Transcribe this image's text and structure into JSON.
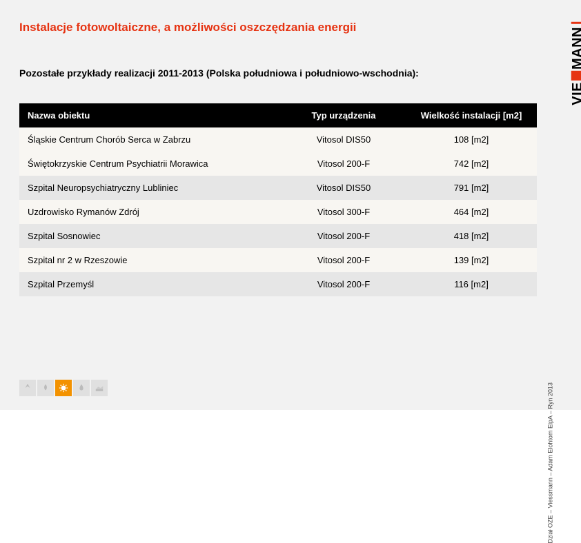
{
  "title": "Instalacje fotowoltaiczne, a możliwości oszczędzania energii",
  "subtitle": "Pozostałe przykłady realizacji 2011-2013 (Polska południowa i południowo-wschodnia):",
  "table": {
    "columns": [
      "Nazwa obiektu",
      "Typ urządzenia",
      "Wielkość instalacji [m2]"
    ],
    "rows": [
      {
        "name": "Śląskie Centrum Chorób Serca w Zabrzu",
        "type": "Vitosol DIS50",
        "size": "108 [m2]",
        "shade": "light"
      },
      {
        "name": "Świętokrzyskie Centrum Psychiatrii Morawica",
        "type": "Vitosol 200-F",
        "size": "742 [m2]",
        "shade": "light"
      },
      {
        "name": "Szpital Neuropsychiatryczny Lubliniec",
        "type": "Vitosol DIS50",
        "size": "791 [m2]",
        "shade": "gray"
      },
      {
        "name": "Uzdrowisko Rymanów Zdrój",
        "type": "Vitosol 300-F",
        "size": "464 [m2]",
        "shade": "light"
      },
      {
        "name": "Szpital Sosnowiec",
        "type": "Vitosol 200-F",
        "size": "418 [m2]",
        "shade": "gray"
      },
      {
        "name": "Szpital nr 2 w Rzeszowie",
        "type": "Vitosol 200-F",
        "size": "139 [m2]",
        "shade": "light"
      },
      {
        "name": "Szpital Przemyśl",
        "type": "Vitosol 200-F",
        "size": "116 [m2]",
        "shade": "gray"
      }
    ]
  },
  "logo_text_left": "VIE",
  "logo_text_right": "MANN",
  "side_caption": "Dział OZE – Viessmann – Adam Elohtom EipA – Ryn 2013",
  "colors": {
    "brand_red": "#e63312",
    "brand_orange": "#f39200",
    "header_bg": "#000000",
    "row_gray": "#e6e6e6",
    "row_light": "#f8f6f2",
    "page_bg": "#f2f2f2"
  }
}
